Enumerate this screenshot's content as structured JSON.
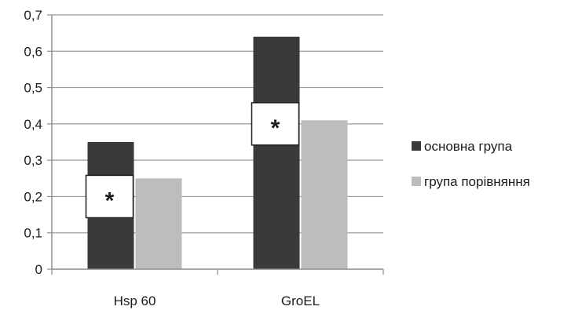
{
  "chart_data": {
    "type": "bar",
    "categories": [
      "Hsp 60",
      "GroEL"
    ],
    "series": [
      {
        "name": "основна група",
        "values": [
          0.35,
          0.64
        ],
        "color": "#3a3a3a"
      },
      {
        "name": "група порівняння",
        "values": [
          0.25,
          0.41
        ],
        "color": "#bdbdbd"
      }
    ],
    "ylim": [
      0,
      0.7
    ],
    "yticks": [
      "0",
      "0,1",
      "0,2",
      "0,3",
      "0,4",
      "0,5",
      "0,6",
      "0,7"
    ],
    "ytick_values": [
      0,
      0.1,
      0.2,
      0.3,
      0.4,
      0.5,
      0.6,
      0.7
    ],
    "grid": true,
    "legend": "right",
    "annotations": [
      {
        "category": "Hsp 60",
        "text": "*"
      },
      {
        "category": "GroEL",
        "text": "*"
      }
    ],
    "title": "",
    "xlabel": "",
    "ylabel": ""
  },
  "colors": {
    "grid": "#9a9a9a",
    "axis": "#8c8c8c"
  }
}
